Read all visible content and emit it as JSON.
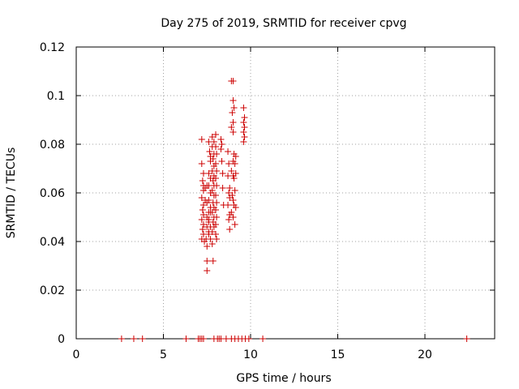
{
  "chart_data": {
    "type": "scatter",
    "title": "Day 275 of 2019, SRMTID for receiver cpvg",
    "xlabel": "GPS time / hours",
    "ylabel": "SRMTID / TECUs",
    "xlim": [
      0,
      24
    ],
    "ylim": [
      0,
      0.12
    ],
    "xticks": [
      0,
      5,
      10,
      15,
      20
    ],
    "xtick_labels": [
      "0",
      "5",
      "10",
      "15",
      "20"
    ],
    "yticks": [
      0,
      0.02,
      0.04,
      0.06,
      0.08,
      0.1,
      0.12
    ],
    "ytick_labels": [
      "0",
      "0.02",
      "0.04",
      "0.06",
      "0.08",
      "0.1",
      "0.12"
    ],
    "grid": true,
    "marker": "+",
    "marker_color": "#cc0000",
    "series": [
      {
        "name": "SRMTID",
        "points": [
          [
            2.6,
            0
          ],
          [
            3.3,
            0
          ],
          [
            3.8,
            0
          ],
          [
            6.3,
            0
          ],
          [
            7.0,
            0
          ],
          [
            7.1,
            0
          ],
          [
            7.2,
            0
          ],
          [
            7.3,
            0
          ],
          [
            7.9,
            0
          ],
          [
            8.1,
            0
          ],
          [
            8.2,
            0
          ],
          [
            8.3,
            0
          ],
          [
            8.6,
            0
          ],
          [
            8.9,
            0
          ],
          [
            9.1,
            0
          ],
          [
            9.3,
            0
          ],
          [
            9.5,
            0
          ],
          [
            9.7,
            0
          ],
          [
            9.9,
            0
          ],
          [
            10.7,
            0
          ],
          [
            22.4,
            0
          ],
          [
            7.2,
            0.082
          ],
          [
            7.2,
            0.072
          ],
          [
            7.3,
            0.068
          ],
          [
            7.25,
            0.065
          ],
          [
            7.3,
            0.063
          ],
          [
            7.3,
            0.061
          ],
          [
            7.2,
            0.058
          ],
          [
            7.3,
            0.055
          ],
          [
            7.25,
            0.053
          ],
          [
            7.3,
            0.051
          ],
          [
            7.2,
            0.049
          ],
          [
            7.3,
            0.047
          ],
          [
            7.25,
            0.045
          ],
          [
            7.3,
            0.043
          ],
          [
            7.2,
            0.041
          ],
          [
            7.35,
            0.04
          ],
          [
            7.4,
            0.062
          ],
          [
            7.4,
            0.057
          ],
          [
            7.5,
            0.063
          ],
          [
            7.5,
            0.056
          ],
          [
            7.5,
            0.05
          ],
          [
            7.5,
            0.046
          ],
          [
            7.45,
            0.041
          ],
          [
            7.5,
            0.038
          ],
          [
            7.5,
            0.032
          ],
          [
            7.5,
            0.028
          ],
          [
            7.6,
            0.052
          ],
          [
            7.6,
            0.048
          ],
          [
            7.6,
            0.044
          ],
          [
            7.6,
            0.081
          ],
          [
            7.65,
            0.077
          ],
          [
            7.7,
            0.075
          ],
          [
            7.7,
            0.073
          ],
          [
            7.6,
            0.068
          ],
          [
            7.7,
            0.066
          ],
          [
            7.6,
            0.063
          ],
          [
            7.7,
            0.06
          ],
          [
            7.6,
            0.057
          ],
          [
            7.7,
            0.054
          ],
          [
            7.7,
            0.052
          ],
          [
            7.6,
            0.049
          ],
          [
            7.7,
            0.046
          ],
          [
            7.6,
            0.043
          ],
          [
            7.7,
            0.041
          ],
          [
            7.8,
            0.044
          ],
          [
            7.8,
            0.083
          ],
          [
            7.9,
            0.081
          ],
          [
            7.8,
            0.079
          ],
          [
            7.9,
            0.076
          ],
          [
            7.85,
            0.074
          ],
          [
            7.9,
            0.071
          ],
          [
            7.8,
            0.069
          ],
          [
            7.9,
            0.067
          ],
          [
            7.85,
            0.065
          ],
          [
            7.9,
            0.063
          ],
          [
            7.8,
            0.061
          ],
          [
            7.9,
            0.059
          ],
          [
            7.85,
            0.056
          ],
          [
            7.9,
            0.054
          ],
          [
            7.8,
            0.052
          ],
          [
            7.9,
            0.05
          ],
          [
            7.85,
            0.048
          ],
          [
            7.9,
            0.046
          ],
          [
            7.8,
            0.039
          ],
          [
            7.85,
            0.032
          ],
          [
            8.0,
            0.084
          ],
          [
            8.0,
            0.079
          ],
          [
            8.05,
            0.076
          ],
          [
            8.0,
            0.072
          ],
          [
            8.05,
            0.069
          ],
          [
            8.0,
            0.066
          ],
          [
            8.05,
            0.063
          ],
          [
            8.0,
            0.059
          ],
          [
            8.05,
            0.056
          ],
          [
            8.0,
            0.053
          ],
          [
            8.05,
            0.05
          ],
          [
            8.0,
            0.047
          ],
          [
            8.0,
            0.043
          ],
          [
            8.05,
            0.041
          ],
          [
            8.3,
            0.082
          ],
          [
            8.35,
            0.08
          ],
          [
            8.3,
            0.078
          ],
          [
            8.35,
            0.073
          ],
          [
            8.4,
            0.068
          ],
          [
            8.4,
            0.062
          ],
          [
            8.45,
            0.055
          ],
          [
            8.7,
            0.077
          ],
          [
            8.75,
            0.072
          ],
          [
            8.7,
            0.067
          ],
          [
            8.8,
            0.062
          ],
          [
            8.75,
            0.06
          ],
          [
            8.8,
            0.058
          ],
          [
            8.7,
            0.055
          ],
          [
            8.8,
            0.051
          ],
          [
            8.75,
            0.049
          ],
          [
            8.8,
            0.045
          ],
          [
            8.9,
            0.106
          ],
          [
            9.0,
            0.106
          ],
          [
            9.0,
            0.098
          ],
          [
            9.05,
            0.095
          ],
          [
            8.95,
            0.093
          ],
          [
            9.0,
            0.089
          ],
          [
            8.9,
            0.087
          ],
          [
            9.0,
            0.085
          ],
          [
            9.05,
            0.076
          ],
          [
            9.0,
            0.073
          ],
          [
            8.9,
            0.069
          ],
          [
            9.0,
            0.067
          ],
          [
            9.05,
            0.066
          ],
          [
            8.95,
            0.059
          ],
          [
            9.0,
            0.057
          ],
          [
            9.05,
            0.055
          ],
          [
            8.9,
            0.052
          ],
          [
            9.0,
            0.05
          ],
          [
            9.1,
            0.047
          ],
          [
            9.15,
            0.075
          ],
          [
            9.1,
            0.072
          ],
          [
            9.15,
            0.068
          ],
          [
            9.1,
            0.061
          ],
          [
            9.15,
            0.054
          ],
          [
            9.6,
            0.095
          ],
          [
            9.65,
            0.091
          ],
          [
            9.6,
            0.089
          ],
          [
            9.65,
            0.087
          ],
          [
            9.6,
            0.085
          ],
          [
            9.65,
            0.083
          ],
          [
            9.6,
            0.081
          ]
        ]
      }
    ]
  }
}
